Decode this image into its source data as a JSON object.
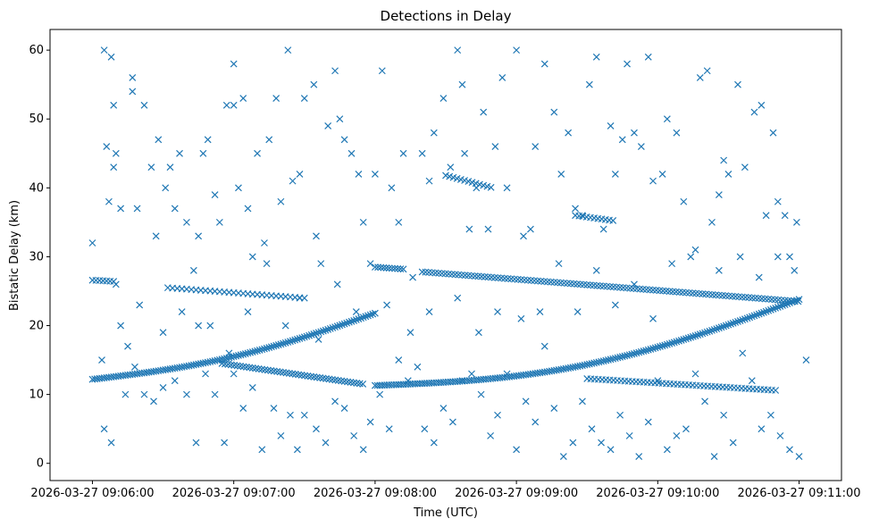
{
  "chart_data": {
    "type": "scatter",
    "title": "Detections in Delay",
    "xlabel": "Time (UTC)",
    "ylabel": "Bistatic Delay (km)",
    "marker": "x",
    "color": "#1f77b4",
    "xlim_seconds": [
      -18,
      318
    ],
    "ylim": [
      -2.5,
      63
    ],
    "x_reference": "2026-03-27 09:06:00",
    "x_ticks": [
      {
        "t": 0,
        "label": "2026-03-27 09:06:00"
      },
      {
        "t": 60,
        "label": "2026-03-27 09:07:00"
      },
      {
        "t": 120,
        "label": "2026-03-27 09:08:00"
      },
      {
        "t": 180,
        "label": "2026-03-27 09:09:00"
      },
      {
        "t": 240,
        "label": "2026-03-27 09:10:00"
      },
      {
        "t": 300,
        "label": "2026-03-27 09:11:00"
      }
    ],
    "y_ticks": [
      {
        "v": 0,
        "label": "0"
      },
      {
        "v": 10,
        "label": "10"
      },
      {
        "v": 20,
        "label": "20"
      },
      {
        "v": 30,
        "label": "30"
      },
      {
        "v": 40,
        "label": "40"
      },
      {
        "v": 50,
        "label": "50"
      },
      {
        "v": 60,
        "label": "60"
      }
    ],
    "tracks": [
      {
        "name": "track-a-rising",
        "t_start": 0,
        "t_end": 120,
        "y_start": 12.2,
        "y_end": 21.8,
        "y_mid_offset": -1.5,
        "step_s": 1.0
      },
      {
        "name": "track-b-upper",
        "t_start": 0,
        "t_end": 10,
        "y_start": 26.6,
        "y_end": 26.4,
        "y_mid_offset": 0,
        "step_s": 1.5
      },
      {
        "name": "track-c-upper",
        "t_start": 32,
        "t_end": 90,
        "y_start": 25.5,
        "y_end": 24.0,
        "y_mid_offset": 0,
        "step_s": 2.0
      },
      {
        "name": "track-d-falling",
        "t_start": 55,
        "t_end": 115,
        "y_start": 14.5,
        "y_end": 11.5,
        "y_mid_offset": 0,
        "step_s": 1.3
      },
      {
        "name": "track-e-flat",
        "t_start": 120,
        "t_end": 132,
        "y_start": 28.5,
        "y_end": 28.2,
        "y_mid_offset": 0,
        "step_s": 1.2
      },
      {
        "name": "track-f-slow",
        "t_start": 140,
        "t_end": 300,
        "y_start": 27.8,
        "y_end": 23.5,
        "y_mid_offset": 0,
        "step_s": 1.4
      },
      {
        "name": "track-g-rising",
        "t_start": 120,
        "t_end": 300,
        "y_start": 11.3,
        "y_end": 23.8,
        "y_mid_offset": -3.2,
        "step_s": 1.0
      },
      {
        "name": "track-h-low",
        "t_start": 210,
        "t_end": 290,
        "y_start": 12.3,
        "y_end": 10.6,
        "y_mid_offset": 0,
        "step_s": 1.6
      },
      {
        "name": "track-i-short",
        "t_start": 150,
        "t_end": 170,
        "y_start": 41.8,
        "y_end": 40.0,
        "y_mid_offset": 0,
        "step_s": 1.6
      },
      {
        "name": "track-j-short",
        "t_start": 205,
        "t_end": 222,
        "y_start": 36.0,
        "y_end": 35.2,
        "y_mid_offset": 0,
        "step_s": 1.6
      }
    ],
    "scatter_points": [
      [
        0,
        32
      ],
      [
        5,
        60
      ],
      [
        8,
        59
      ],
      [
        9,
        52
      ],
      [
        9,
        43
      ],
      [
        6,
        46
      ],
      [
        7,
        38
      ],
      [
        10,
        45
      ],
      [
        12,
        37
      ],
      [
        10,
        26
      ],
      [
        4,
        15
      ],
      [
        5,
        5
      ],
      [
        8,
        3
      ],
      [
        14,
        10
      ],
      [
        15,
        17
      ],
      [
        17,
        54
      ],
      [
        17,
        56
      ],
      [
        19,
        37
      ],
      [
        22,
        52
      ],
      [
        25,
        43
      ],
      [
        27,
        33
      ],
      [
        28,
        47
      ],
      [
        31,
        40
      ],
      [
        33,
        43
      ],
      [
        35,
        37
      ],
      [
        37,
        45
      ],
      [
        40,
        35
      ],
      [
        43,
        28
      ],
      [
        45,
        33
      ],
      [
        45,
        20
      ],
      [
        47,
        45
      ],
      [
        49,
        47
      ],
      [
        52,
        39
      ],
      [
        54,
        35
      ],
      [
        57,
        52
      ],
      [
        60,
        52
      ],
      [
        60,
        58
      ],
      [
        62,
        40
      ],
      [
        64,
        53
      ],
      [
        66,
        37
      ],
      [
        68,
        30
      ],
      [
        70,
        45
      ],
      [
        73,
        32
      ],
      [
        75,
        47
      ],
      [
        78,
        53
      ],
      [
        80,
        38
      ],
      [
        83,
        60
      ],
      [
        85,
        41
      ],
      [
        88,
        42
      ],
      [
        90,
        53
      ],
      [
        94,
        55
      ],
      [
        95,
        33
      ],
      [
        97,
        29
      ],
      [
        100,
        49
      ],
      [
        103,
        57
      ],
      [
        105,
        50
      ],
      [
        107,
        47
      ],
      [
        110,
        45
      ],
      [
        113,
        42
      ],
      [
        115,
        35
      ],
      [
        118,
        29
      ],
      [
        120,
        42
      ],
      [
        123,
        57
      ],
      [
        127,
        40
      ],
      [
        130,
        35
      ],
      [
        132,
        45
      ],
      [
        136,
        27
      ],
      [
        140,
        45
      ],
      [
        143,
        41
      ],
      [
        145,
        48
      ],
      [
        149,
        53
      ],
      [
        152,
        43
      ],
      [
        155,
        60
      ],
      [
        157,
        55
      ],
      [
        158,
        45
      ],
      [
        160,
        34
      ],
      [
        163,
        40
      ],
      [
        166,
        51
      ],
      [
        168,
        34
      ],
      [
        171,
        46
      ],
      [
        174,
        56
      ],
      [
        176,
        40
      ],
      [
        180,
        60
      ],
      [
        183,
        33
      ],
      [
        186,
        34
      ],
      [
        188,
        46
      ],
      [
        192,
        58
      ],
      [
        196,
        51
      ],
      [
        199,
        42
      ],
      [
        202,
        48
      ],
      [
        205,
        37
      ],
      [
        208,
        36
      ],
      [
        211,
        55
      ],
      [
        214,
        59
      ],
      [
        217,
        34
      ],
      [
        220,
        49
      ],
      [
        222,
        42
      ],
      [
        225,
        47
      ],
      [
        227,
        58
      ],
      [
        230,
        48
      ],
      [
        233,
        46
      ],
      [
        236,
        59
      ],
      [
        238,
        41
      ],
      [
        242,
        42
      ],
      [
        244,
        50
      ],
      [
        248,
        48
      ],
      [
        251,
        38
      ],
      [
        254,
        30
      ],
      [
        258,
        56
      ],
      [
        261,
        57
      ],
      [
        263,
        35
      ],
      [
        266,
        39
      ],
      [
        268,
        44
      ],
      [
        270,
        42
      ],
      [
        274,
        55
      ],
      [
        277,
        43
      ],
      [
        281,
        51
      ],
      [
        284,
        52
      ],
      [
        286,
        36
      ],
      [
        289,
        48
      ],
      [
        291,
        38
      ],
      [
        294,
        36
      ],
      [
        296,
        30
      ],
      [
        299,
        35
      ],
      [
        18,
        14
      ],
      [
        22,
        10
      ],
      [
        26,
        9
      ],
      [
        30,
        11
      ],
      [
        35,
        12
      ],
      [
        40,
        10
      ],
      [
        44,
        3
      ],
      [
        48,
        13
      ],
      [
        52,
        10
      ],
      [
        56,
        3
      ],
      [
        60,
        13
      ],
      [
        64,
        8
      ],
      [
        68,
        11
      ],
      [
        72,
        2
      ],
      [
        77,
        8
      ],
      [
        80,
        4
      ],
      [
        84,
        7
      ],
      [
        87,
        2
      ],
      [
        90,
        7
      ],
      [
        95,
        5
      ],
      [
        99,
        3
      ],
      [
        103,
        9
      ],
      [
        107,
        8
      ],
      [
        111,
        4
      ],
      [
        115,
        2
      ],
      [
        118,
        6
      ],
      [
        122,
        10
      ],
      [
        126,
        5
      ],
      [
        130,
        15
      ],
      [
        134,
        12
      ],
      [
        138,
        14
      ],
      [
        141,
        5
      ],
      [
        145,
        3
      ],
      [
        149,
        8
      ],
      [
        153,
        6
      ],
      [
        157,
        12
      ],
      [
        161,
        13
      ],
      [
        165,
        10
      ],
      [
        169,
        4
      ],
      [
        172,
        7
      ],
      [
        176,
        13
      ],
      [
        180,
        2
      ],
      [
        184,
        9
      ],
      [
        188,
        6
      ],
      [
        192,
        17
      ],
      [
        196,
        8
      ],
      [
        200,
        1
      ],
      [
        204,
        3
      ],
      [
        208,
        9
      ],
      [
        212,
        5
      ],
      [
        216,
        3
      ],
      [
        220,
        2
      ],
      [
        224,
        7
      ],
      [
        228,
        4
      ],
      [
        232,
        1
      ],
      [
        236,
        6
      ],
      [
        240,
        12
      ],
      [
        244,
        2
      ],
      [
        248,
        4
      ],
      [
        252,
        5
      ],
      [
        256,
        13
      ],
      [
        260,
        9
      ],
      [
        264,
        1
      ],
      [
        268,
        7
      ],
      [
        272,
        3
      ],
      [
        276,
        16
      ],
      [
        280,
        12
      ],
      [
        284,
        5
      ],
      [
        288,
        7
      ],
      [
        292,
        4
      ],
      [
        296,
        2
      ],
      [
        300,
        1
      ],
      [
        303,
        15
      ],
      [
        12,
        20
      ],
      [
        20,
        23
      ],
      [
        30,
        19
      ],
      [
        38,
        22
      ],
      [
        50,
        20
      ],
      [
        58,
        16
      ],
      [
        66,
        22
      ],
      [
        74,
        29
      ],
      [
        82,
        20
      ],
      [
        88,
        24
      ],
      [
        96,
        18
      ],
      [
        104,
        26
      ],
      [
        112,
        22
      ],
      [
        125,
        23
      ],
      [
        135,
        19
      ],
      [
        143,
        22
      ],
      [
        155,
        24
      ],
      [
        164,
        19
      ],
      [
        172,
        22
      ],
      [
        182,
        21
      ],
      [
        190,
        22
      ],
      [
        198,
        29
      ],
      [
        206,
        22
      ],
      [
        214,
        28
      ],
      [
        222,
        23
      ],
      [
        230,
        26
      ],
      [
        238,
        21
      ],
      [
        246,
        29
      ],
      [
        256,
        31
      ],
      [
        266,
        28
      ],
      [
        275,
        30
      ],
      [
        283,
        27
      ],
      [
        291,
        30
      ],
      [
        298,
        28
      ]
    ]
  }
}
